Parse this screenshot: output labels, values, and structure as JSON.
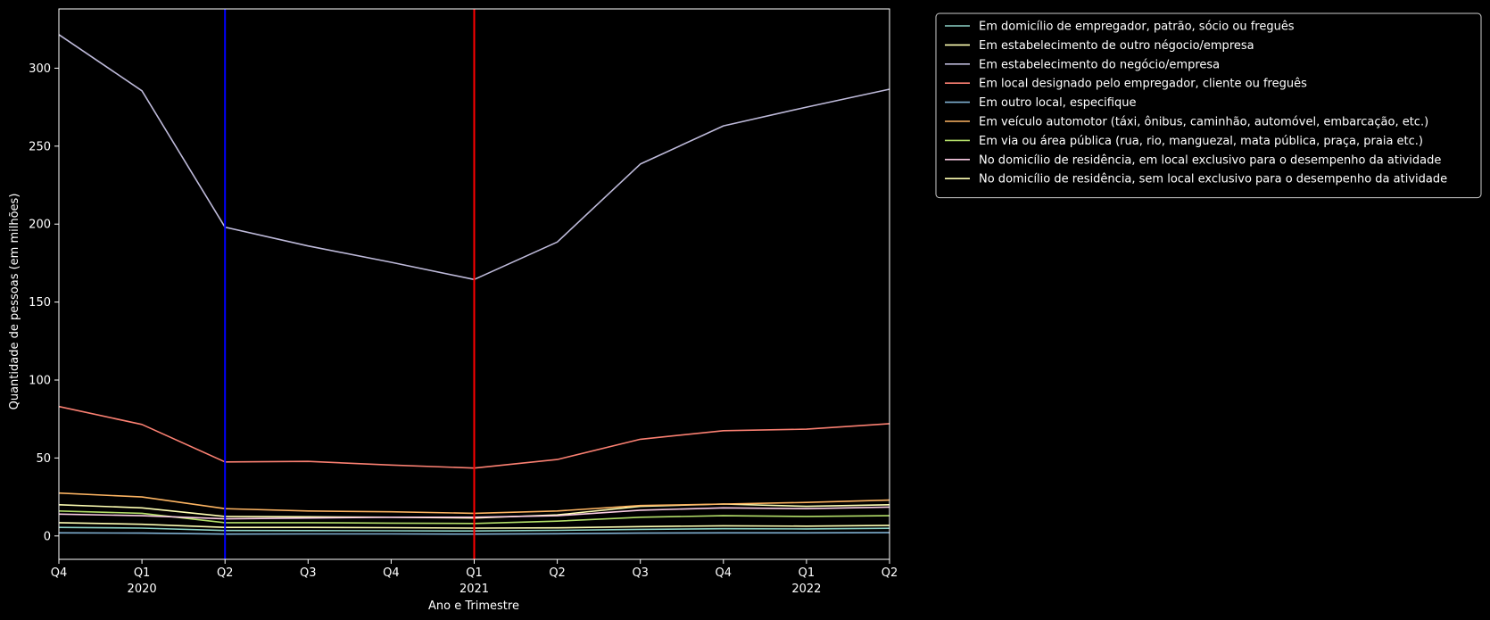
{
  "chart_data": {
    "type": "line",
    "xlabel": "Ano e Trimestre",
    "ylabel": "Quantidade de pessoas (em milhões)",
    "ylim": [
      -15,
      338
    ],
    "yticks": [
      0,
      50,
      100,
      150,
      200,
      250,
      300
    ],
    "categories": [
      "2019 Q4",
      "2020 Q1",
      "2020 Q2",
      "2020 Q3",
      "2020 Q4",
      "2021 Q1",
      "2021 Q2",
      "2021 Q3",
      "2021 Q4",
      "2022 Q1",
      "2022 Q2"
    ],
    "xticks": [
      {
        "label": "Q4",
        "year": ""
      },
      {
        "label": "Q1",
        "year": "2020"
      },
      {
        "label": "Q2",
        "year": ""
      },
      {
        "label": "Q3",
        "year": ""
      },
      {
        "label": "Q4",
        "year": ""
      },
      {
        "label": "Q1",
        "year": "2021"
      },
      {
        "label": "Q2",
        "year": ""
      },
      {
        "label": "Q3",
        "year": ""
      },
      {
        "label": "Q4",
        "year": ""
      },
      {
        "label": "Q1",
        "year": "2022"
      },
      {
        "label": "Q2",
        "year": ""
      }
    ],
    "vlines": [
      {
        "at": "2020 Q2",
        "color": "#0000ff"
      },
      {
        "at": "2021 Q1",
        "color": "#ff0000"
      }
    ],
    "legend_position": "outside-top-right",
    "grid": false,
    "series": [
      {
        "name": "Em domicílio de empregador, patrão, sócio ou freguês",
        "color": "#8dd3c7",
        "values": [
          5.5,
          5.0,
          3.5,
          3.4,
          3.3,
          3.2,
          3.6,
          4.2,
          4.6,
          4.5,
          4.9
        ]
      },
      {
        "name": "Em estabelecimento de outro négocio/empresa",
        "color": "#ffffb3",
        "values": [
          20.0,
          18.0,
          12.5,
          12.3,
          12.0,
          11.5,
          13.5,
          19.0,
          20.5,
          19.0,
          20.0
        ]
      },
      {
        "name": "Em estabelecimento do negócio/empresa",
        "color": "#bebada",
        "values": [
          321.5,
          285.5,
          198.0,
          186.0,
          175.5,
          164.5,
          188.5,
          238.5,
          263.0,
          275.0,
          286.5
        ]
      },
      {
        "name": "Em local designado pelo empregador, cliente ou freguês",
        "color": "#fb8072",
        "values": [
          83.0,
          71.5,
          47.5,
          47.8,
          45.5,
          43.5,
          49.0,
          62.0,
          67.5,
          68.5,
          72.0
        ]
      },
      {
        "name": "Em outro local, especifique",
        "color": "#80b1d3",
        "values": [
          2.0,
          1.8,
          1.2,
          1.3,
          1.3,
          1.2,
          1.4,
          1.8,
          2.0,
          2.0,
          2.1
        ]
      },
      {
        "name": "Em veículo automotor (táxi, ônibus, caminhão, automóvel, embarcação, etc.)",
        "color": "#fdb462",
        "values": [
          27.5,
          25.0,
          17.5,
          16.0,
          15.5,
          14.5,
          16.0,
          19.5,
          20.5,
          21.5,
          23.0
        ]
      },
      {
        "name": "Em via ou área pública (rua, rio, manguezal, mata pública, praça, praia etc.)",
        "color": "#b3de69",
        "values": [
          16.0,
          14.5,
          8.5,
          8.5,
          8.2,
          8.0,
          9.5,
          12.0,
          13.0,
          12.5,
          13.0
        ]
      },
      {
        "name": "No domicílio de residência, em local exclusivo para o desempenho da atividade",
        "color": "#fccde5",
        "values": [
          14.0,
          13.0,
          11.0,
          11.5,
          12.0,
          12.0,
          13.0,
          16.5,
          18.0,
          17.5,
          18.5
        ]
      },
      {
        "name": "No domicílio de residência, sem local exclusivo para o desempenho da atividade",
        "color": "#ffffb3",
        "values": [
          8.5,
          7.5,
          5.5,
          5.5,
          5.3,
          5.0,
          5.2,
          6.0,
          6.5,
          6.3,
          6.8
        ]
      }
    ]
  }
}
